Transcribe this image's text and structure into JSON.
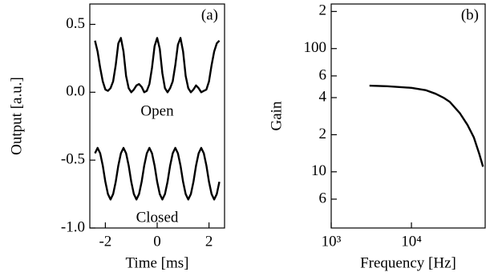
{
  "chart_data": [
    {
      "type": "line",
      "panel_label": "(a)",
      "xlabel": "Time [ms]",
      "ylabel": "Output [a.u.]",
      "xlim": [
        -2.6,
        2.6
      ],
      "xticks": [
        -2,
        0,
        2
      ],
      "ylim": [
        -1.0,
        0.65
      ],
      "yticks": [
        0.5,
        {
          "value": 0,
          "label": "0.0"
        },
        -0.5,
        {
          "value": -1.0,
          "label": "-1.0"
        }
      ],
      "x": [
        -2.4,
        -2.3,
        -2.2,
        -2.1,
        -2.0,
        -1.9,
        -1.8,
        -1.7,
        -1.6,
        -1.5,
        -1.4,
        -1.3,
        -1.2,
        -1.1,
        -1.0,
        -0.9,
        -0.8,
        -0.7,
        -0.6,
        -0.5,
        -0.4,
        -0.3,
        -0.2,
        -0.1,
        0.0,
        0.1,
        0.2,
        0.3,
        0.4,
        0.5,
        0.6,
        0.7,
        0.8,
        0.9,
        1.0,
        1.1,
        1.2,
        1.3,
        1.4,
        1.5,
        1.6,
        1.7,
        1.8,
        1.9,
        2.0,
        2.1,
        2.2,
        2.3,
        2.4
      ],
      "series": [
        {
          "name": "Open",
          "color": "#000000",
          "values": [
            0.38,
            0.3,
            0.18,
            0.08,
            0.02,
            0.01,
            0.03,
            0.08,
            0.2,
            0.36,
            0.4,
            0.3,
            0.12,
            0.03,
            0.0,
            0.02,
            0.05,
            0.06,
            0.04,
            0.0,
            0.01,
            0.06,
            0.18,
            0.34,
            0.4,
            0.32,
            0.14,
            0.03,
            0.0,
            0.03,
            0.08,
            0.2,
            0.35,
            0.4,
            0.3,
            0.12,
            0.03,
            0.0,
            0.02,
            0.05,
            0.03,
            0.0,
            0.01,
            0.02,
            0.08,
            0.2,
            0.3,
            0.36,
            0.38
          ]
        },
        {
          "name": "Closed",
          "color": "#000000",
          "values": [
            -0.45,
            -0.41,
            -0.45,
            -0.54,
            -0.66,
            -0.75,
            -0.79,
            -0.75,
            -0.66,
            -0.54,
            -0.45,
            -0.41,
            -0.45,
            -0.54,
            -0.66,
            -0.75,
            -0.79,
            -0.75,
            -0.66,
            -0.54,
            -0.45,
            -0.41,
            -0.45,
            -0.54,
            -0.66,
            -0.75,
            -0.79,
            -0.75,
            -0.66,
            -0.54,
            -0.45,
            -0.41,
            -0.45,
            -0.54,
            -0.66,
            -0.75,
            -0.79,
            -0.75,
            -0.66,
            -0.54,
            -0.45,
            -0.41,
            -0.45,
            -0.54,
            -0.66,
            -0.75,
            -0.79,
            -0.75,
            -0.66
          ]
        }
      ]
    },
    {
      "type": "line",
      "panel_label": "(b)",
      "xlabel": "Frequency [Hz]",
      "ylabel": "Gain",
      "xscale": "log",
      "yscale": "log",
      "xlim": [
        1000,
        83000
      ],
      "xticks": [
        {
          "value": 1000,
          "label": "10³"
        },
        {
          "value": 10000,
          "label": "10⁴"
        }
      ],
      "ylim": [
        3.5,
        230
      ],
      "yticks": [
        {
          "value": 200,
          "label": "2"
        },
        100,
        {
          "value": 60,
          "label": "6"
        },
        {
          "value": 40,
          "label": "4"
        },
        {
          "value": 20,
          "label": "2"
        },
        10,
        {
          "value": 6,
          "label": "6"
        }
      ],
      "x": [
        3000,
        5000,
        10000,
        15000,
        20000,
        25000,
        30000,
        40000,
        50000,
        60000,
        70000,
        78000
      ],
      "series": [
        {
          "color": "#000000",
          "values": [
            50,
            49.5,
            48,
            46,
            43,
            40,
            37,
            30,
            24,
            19,
            14,
            11
          ]
        }
      ]
    }
  ]
}
